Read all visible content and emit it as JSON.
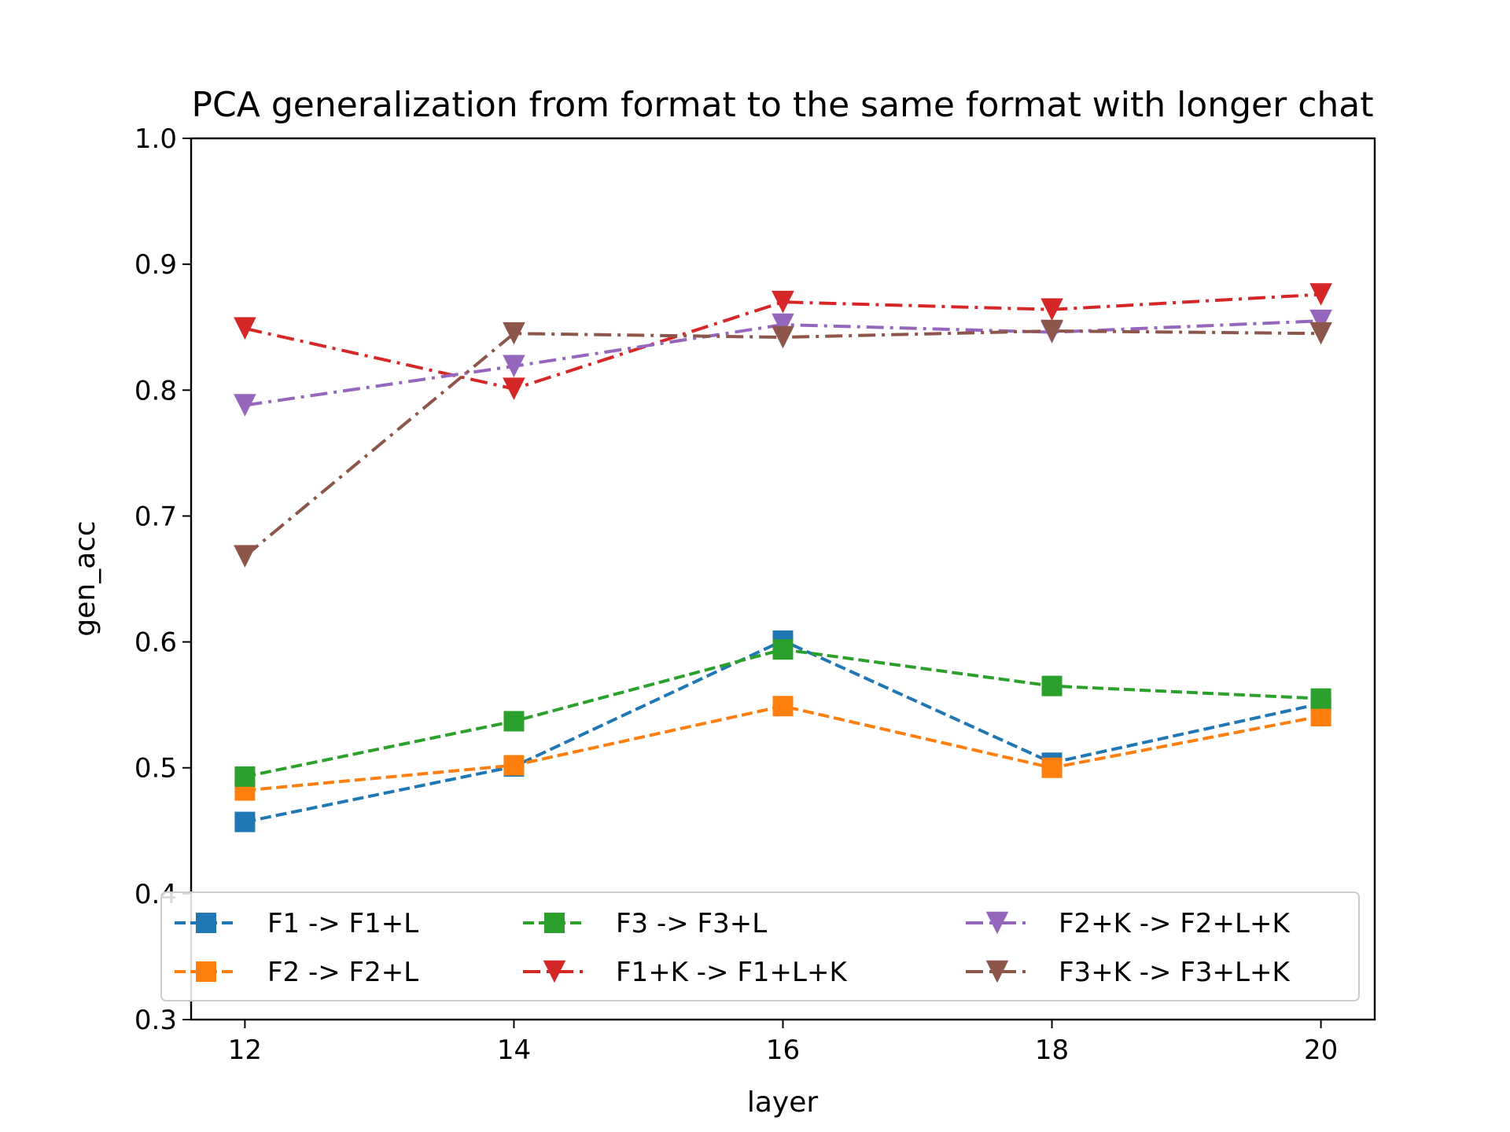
{
  "chart_data": {
    "type": "line",
    "title": "PCA generalization from format to the same format with longer chat",
    "xlabel": "layer",
    "ylabel": "gen_acc",
    "x": [
      12,
      14,
      16,
      18,
      20
    ],
    "xlim": [
      11.6,
      20.4
    ],
    "ylim": [
      0.3,
      1.0
    ],
    "xticks": [
      12,
      14,
      16,
      18,
      20
    ],
    "yticks": [
      0.3,
      0.4,
      0.5,
      0.6,
      0.7,
      0.8,
      0.9,
      1.0
    ],
    "ytick_labels": [
      "0.3",
      "0.4",
      "0.5",
      "0.6",
      "0.7",
      "0.8",
      "0.9",
      "1.0"
    ],
    "grid": false,
    "legend_position": "lower center",
    "series": [
      {
        "name": "F1 -> F1+L",
        "color": "#1f77b4",
        "marker": "square",
        "linestyle": "dashed",
        "values": [
          0.457,
          0.501,
          0.601,
          0.504,
          0.551
        ]
      },
      {
        "name": "F2 -> F2+L",
        "color": "#ff7f0e",
        "marker": "square",
        "linestyle": "dashed",
        "values": [
          0.482,
          0.502,
          0.549,
          0.5,
          0.541
        ]
      },
      {
        "name": "F3 -> F3+L",
        "color": "#2ca02c",
        "marker": "square",
        "linestyle": "dashed",
        "values": [
          0.493,
          0.537,
          0.594,
          0.565,
          0.555
        ]
      },
      {
        "name": "F1+K -> F1+L+K",
        "color": "#d62728",
        "marker": "triangle-down",
        "linestyle": "dashdot",
        "values": [
          0.849,
          0.801,
          0.87,
          0.864,
          0.876
        ]
      },
      {
        "name": "F2+K -> F2+L+K",
        "color": "#9467bd",
        "marker": "triangle-down",
        "linestyle": "dashdot",
        "values": [
          0.788,
          0.819,
          0.852,
          0.846,
          0.855
        ]
      },
      {
        "name": "F3+K -> F3+L+K",
        "color": "#8c564b",
        "marker": "triangle-down",
        "linestyle": "dashdot",
        "values": [
          0.668,
          0.845,
          0.842,
          0.847,
          0.845
        ]
      }
    ]
  }
}
